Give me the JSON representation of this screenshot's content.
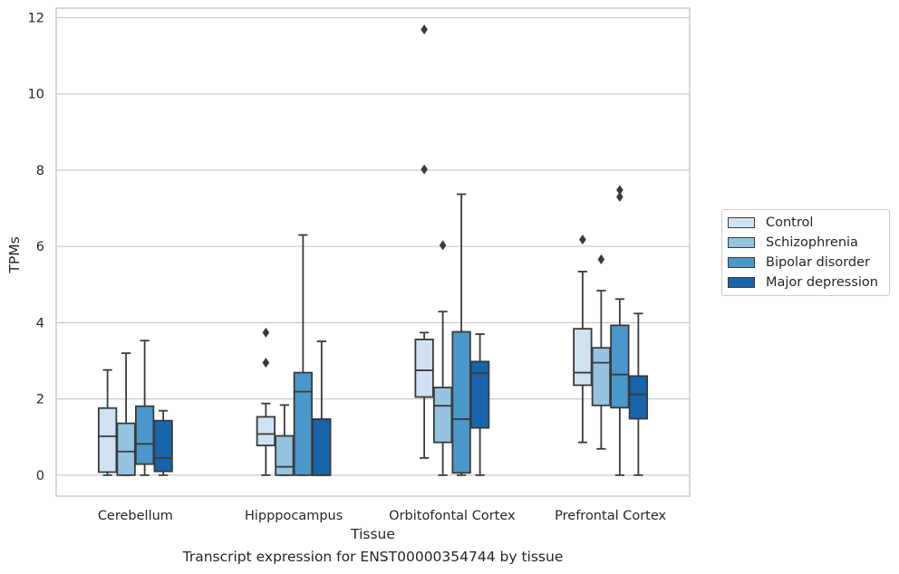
{
  "caption": "Transcript expression for ENST00000354744 by tissue",
  "colors": {
    "Control": "#d0e1f2",
    "Schizophrenia": "#94c4df",
    "Bipolar disorder": "#4a98c9",
    "Major depression": "#1764ab",
    "grid": "#cccccc",
    "box_edge": "#3a3a3a"
  },
  "chart_data": {
    "type": "box",
    "xlabel": "Tissue",
    "ylabel": "TPMs",
    "ylim": [
      -0.55,
      12.25
    ],
    "yticks": [
      0,
      2,
      4,
      6,
      8,
      10,
      12
    ],
    "grid": true,
    "legend_position": "right",
    "categories": [
      "Cerebellum",
      "Hipppocampus",
      "Orbitofontal Cortex",
      "Prefrontal Cortex"
    ],
    "series": [
      {
        "name": "Control",
        "boxes": [
          {
            "whislo": 0.0,
            "q1": 0.08,
            "med": 1.02,
            "q3": 1.76,
            "whishi": 2.76,
            "fliers": []
          },
          {
            "whislo": 0.0,
            "q1": 0.78,
            "med": 1.08,
            "q3": 1.53,
            "whishi": 1.88,
            "fliers": [
              2.95,
              3.74
            ]
          },
          {
            "whislo": 0.45,
            "q1": 2.05,
            "med": 2.75,
            "q3": 3.56,
            "whishi": 3.74,
            "fliers": [
              8.02,
              11.69
            ]
          },
          {
            "whislo": 0.86,
            "q1": 2.36,
            "med": 2.69,
            "q3": 3.84,
            "whishi": 5.34,
            "fliers": [
              6.18
            ]
          }
        ]
      },
      {
        "name": "Schizophrenia",
        "boxes": [
          {
            "whislo": 0.0,
            "q1": 0.0,
            "med": 0.62,
            "q3": 1.36,
            "whishi": 3.2,
            "fliers": []
          },
          {
            "whislo": 0.0,
            "q1": 0.0,
            "med": 0.22,
            "q3": 1.03,
            "whishi": 1.84,
            "fliers": []
          },
          {
            "whislo": 0.0,
            "q1": 0.86,
            "med": 1.82,
            "q3": 2.3,
            "whishi": 4.29,
            "fliers": [
              6.03
            ]
          },
          {
            "whislo": 0.69,
            "q1": 1.83,
            "med": 2.95,
            "q3": 3.34,
            "whishi": 4.84,
            "fliers": [
              5.66
            ]
          }
        ]
      },
      {
        "name": "Bipolar disorder",
        "boxes": [
          {
            "whislo": 0.0,
            "q1": 0.29,
            "med": 0.82,
            "q3": 1.81,
            "whishi": 3.53,
            "fliers": []
          },
          {
            "whislo": 0.0,
            "q1": 0.0,
            "med": 2.19,
            "q3": 2.69,
            "whishi": 6.3,
            "fliers": []
          },
          {
            "whislo": 0.0,
            "q1": 0.06,
            "med": 1.47,
            "q3": 3.76,
            "whishi": 7.37,
            "fliers": []
          },
          {
            "whislo": 0.0,
            "q1": 1.77,
            "med": 2.64,
            "q3": 3.93,
            "whishi": 4.62,
            "fliers": [
              7.3,
              7.48
            ]
          }
        ]
      },
      {
        "name": "Major depression",
        "boxes": [
          {
            "whislo": 0.0,
            "q1": 0.1,
            "med": 0.45,
            "q3": 1.43,
            "whishi": 1.69,
            "fliers": []
          },
          {
            "whislo": 0.0,
            "q1": 0.0,
            "med": 0.0,
            "q3": 1.47,
            "whishi": 3.51,
            "fliers": []
          },
          {
            "whislo": 0.0,
            "q1": 1.24,
            "med": 2.68,
            "q3": 2.98,
            "whishi": 3.7,
            "fliers": []
          },
          {
            "whislo": 0.0,
            "q1": 1.48,
            "med": 2.12,
            "q3": 2.6,
            "whishi": 4.24,
            "fliers": []
          }
        ]
      }
    ]
  }
}
